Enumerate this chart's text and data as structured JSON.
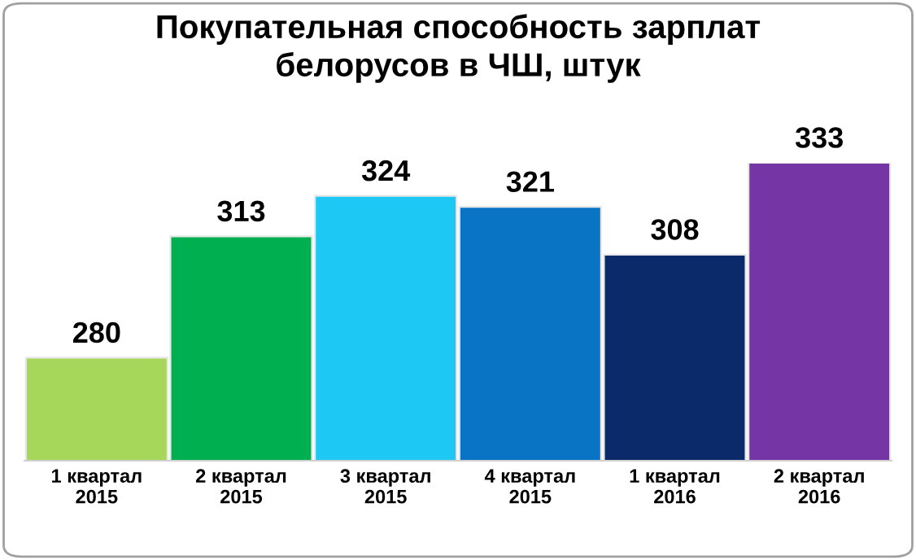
{
  "chart_data": {
    "type": "bar",
    "title": "Покупательная способность зарплат\nбелорусов в ЧШ, штук",
    "categories": [
      "1 квартал\n2015",
      "2 квартал\n2015",
      "3 квартал\n2015",
      "4 квартал\n2015",
      "1 квартал\n2016",
      "2 квартал\n2016"
    ],
    "values": [
      280,
      313,
      324,
      321,
      308,
      333
    ],
    "colors": [
      "#a6d65a",
      "#00b050",
      "#1ec8f5",
      "#0a74c4",
      "#0a2a6a",
      "#7535a5"
    ],
    "ylim": [
      252,
      333
    ],
    "tick_labels": "x",
    "data_labels": true,
    "grid": false,
    "legend": false
  }
}
